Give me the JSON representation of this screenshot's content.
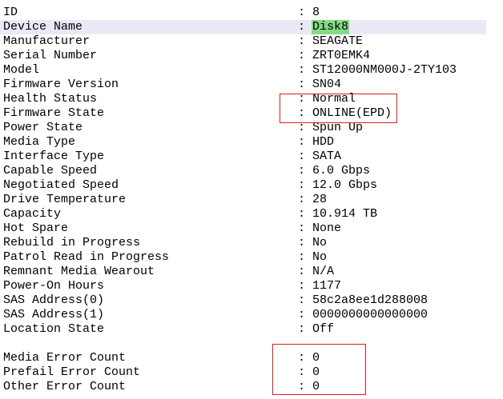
{
  "separator": ":",
  "properties": [
    {
      "label": "ID",
      "value": "8"
    },
    {
      "label": "Device Name",
      "value": "Disk8"
    },
    {
      "label": "Manufacturer",
      "value": "SEAGATE"
    },
    {
      "label": "Serial Number",
      "value": "ZRT0EMK4"
    },
    {
      "label": "Model",
      "value": "ST12000NM000J-2TY103"
    },
    {
      "label": "Firmware Version",
      "value": "SN04"
    },
    {
      "label": "Health Status",
      "value": "Normal"
    },
    {
      "label": "Firmware State",
      "value": "ONLINE(EPD)"
    },
    {
      "label": "Power State",
      "value": "Spun Up"
    },
    {
      "label": "Media Type",
      "value": "HDD"
    },
    {
      "label": "Interface Type",
      "value": "SATA"
    },
    {
      "label": "Capable Speed",
      "value": "6.0 Gbps"
    },
    {
      "label": "Negotiated Speed",
      "value": "12.0 Gbps"
    },
    {
      "label": "Drive Temperature",
      "value": "28"
    },
    {
      "label": "Capacity",
      "value": "10.914 TB"
    },
    {
      "label": "Hot Spare",
      "value": "None"
    },
    {
      "label": "Rebuild in Progress",
      "value": "No"
    },
    {
      "label": "Patrol Read in Progress",
      "value": "No"
    },
    {
      "label": "Remnant Media Wearout",
      "value": "N/A"
    },
    {
      "label": "Power-On Hours",
      "value": "1177"
    },
    {
      "label": "SAS Address(0)",
      "value": "58c2a8ee1d288008"
    },
    {
      "label": "SAS Address(1)",
      "value": "0000000000000000"
    },
    {
      "label": "Location State",
      "value": "Off"
    }
  ],
  "error_counts": [
    {
      "label": "Media Error Count",
      "value": "0"
    },
    {
      "label": "Prefail Error Count",
      "value": "0"
    },
    {
      "label": "Other Error Count",
      "value": "0"
    }
  ]
}
